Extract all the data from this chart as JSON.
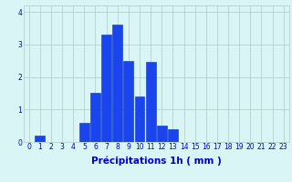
{
  "categories": [
    0,
    1,
    2,
    3,
    4,
    5,
    6,
    7,
    8,
    9,
    10,
    11,
    12,
    13,
    14,
    15,
    16,
    17,
    18,
    19,
    20,
    21,
    22,
    23
  ],
  "values": [
    0,
    0.2,
    0,
    0,
    0,
    0.6,
    1.5,
    3.3,
    3.6,
    2.5,
    1.4,
    2.45,
    0.5,
    0.4,
    0,
    0,
    0,
    0,
    0,
    0,
    0,
    0,
    0,
    0
  ],
  "bar_color": "#1a44ee",
  "bar_edge_color": "#0033bb",
  "background_color": "#d9f5f5",
  "grid_color": "#b0c8c8",
  "axis_label_color": "#0000cc",
  "tick_color": "#0000cc",
  "xlabel": "Précipitations 1h ( mm )",
  "ylim": [
    0,
    4.2
  ],
  "yticks": [
    0,
    1,
    2,
    3,
    4
  ],
  "xlabel_fontsize": 7.5,
  "tick_fontsize": 5.5
}
